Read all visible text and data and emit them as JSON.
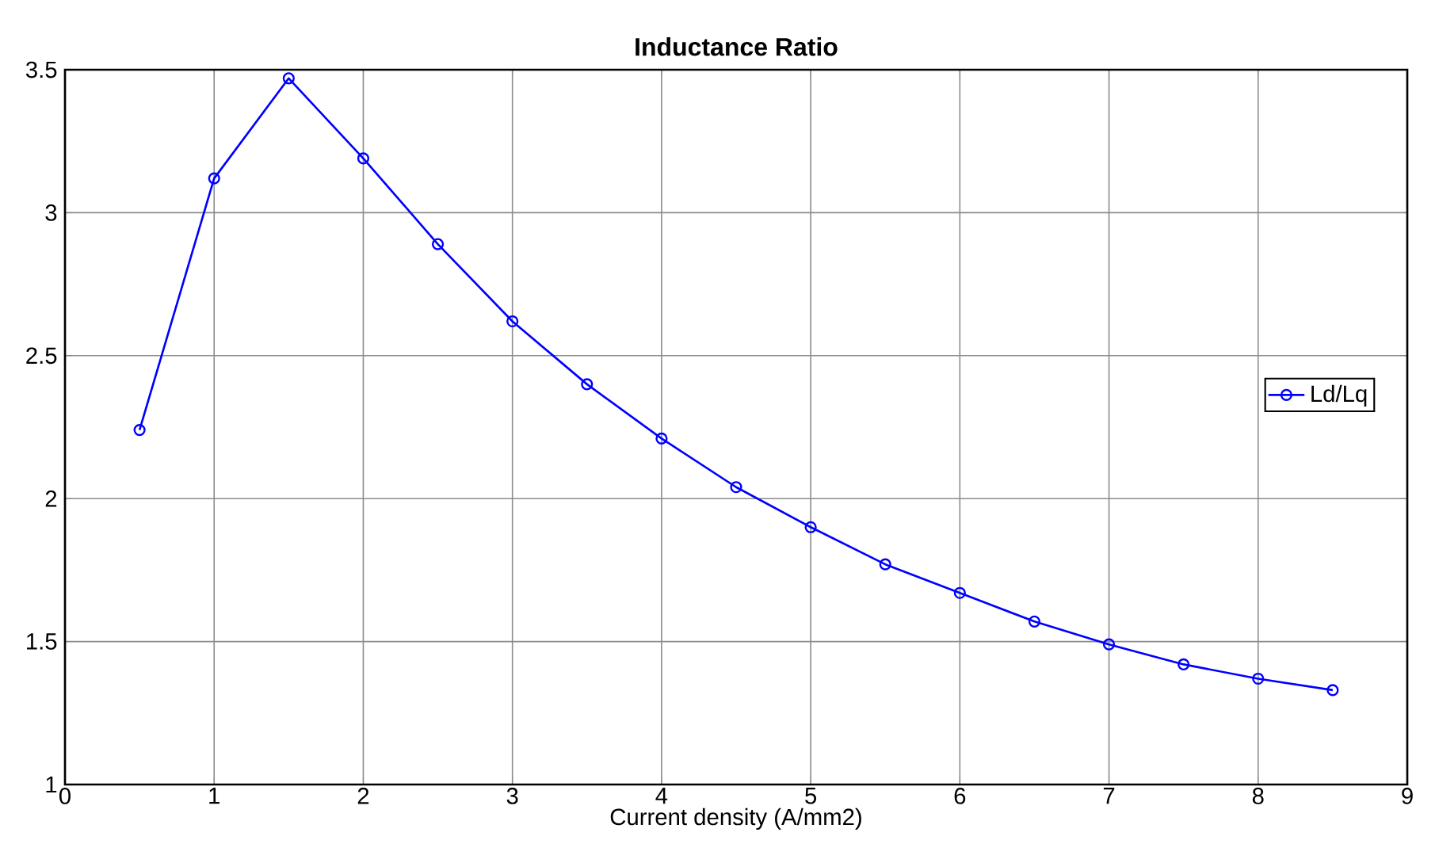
{
  "chart_data": {
    "type": "line",
    "title": "Inductance Ratio",
    "xlabel": "Current density (A/mm2)",
    "x": [
      0.5,
      1,
      1.5,
      2,
      2.5,
      3,
      3.5,
      4,
      4.5,
      5,
      5.5,
      6,
      6.5,
      7,
      7.5,
      8,
      8.5
    ],
    "series": [
      {
        "name": "Ld/Lq",
        "color": "#0000ff",
        "values": [
          2.24,
          3.12,
          3.47,
          3.19,
          2.89,
          2.62,
          2.4,
          2.21,
          2.04,
          1.9,
          1.77,
          1.67,
          1.57,
          1.49,
          1.42,
          1.37,
          1.33
        ]
      }
    ],
    "xlim": [
      0,
      9
    ],
    "xticks": [
      0,
      1,
      2,
      3,
      4,
      5,
      6,
      7,
      8,
      9
    ],
    "ylim": [
      1,
      3.5
    ],
    "yticks": [
      1,
      1.5,
      2,
      2.5,
      3,
      3.5
    ],
    "grid": true,
    "legend": "right",
    "marker": "circle",
    "line_style": "solid"
  }
}
